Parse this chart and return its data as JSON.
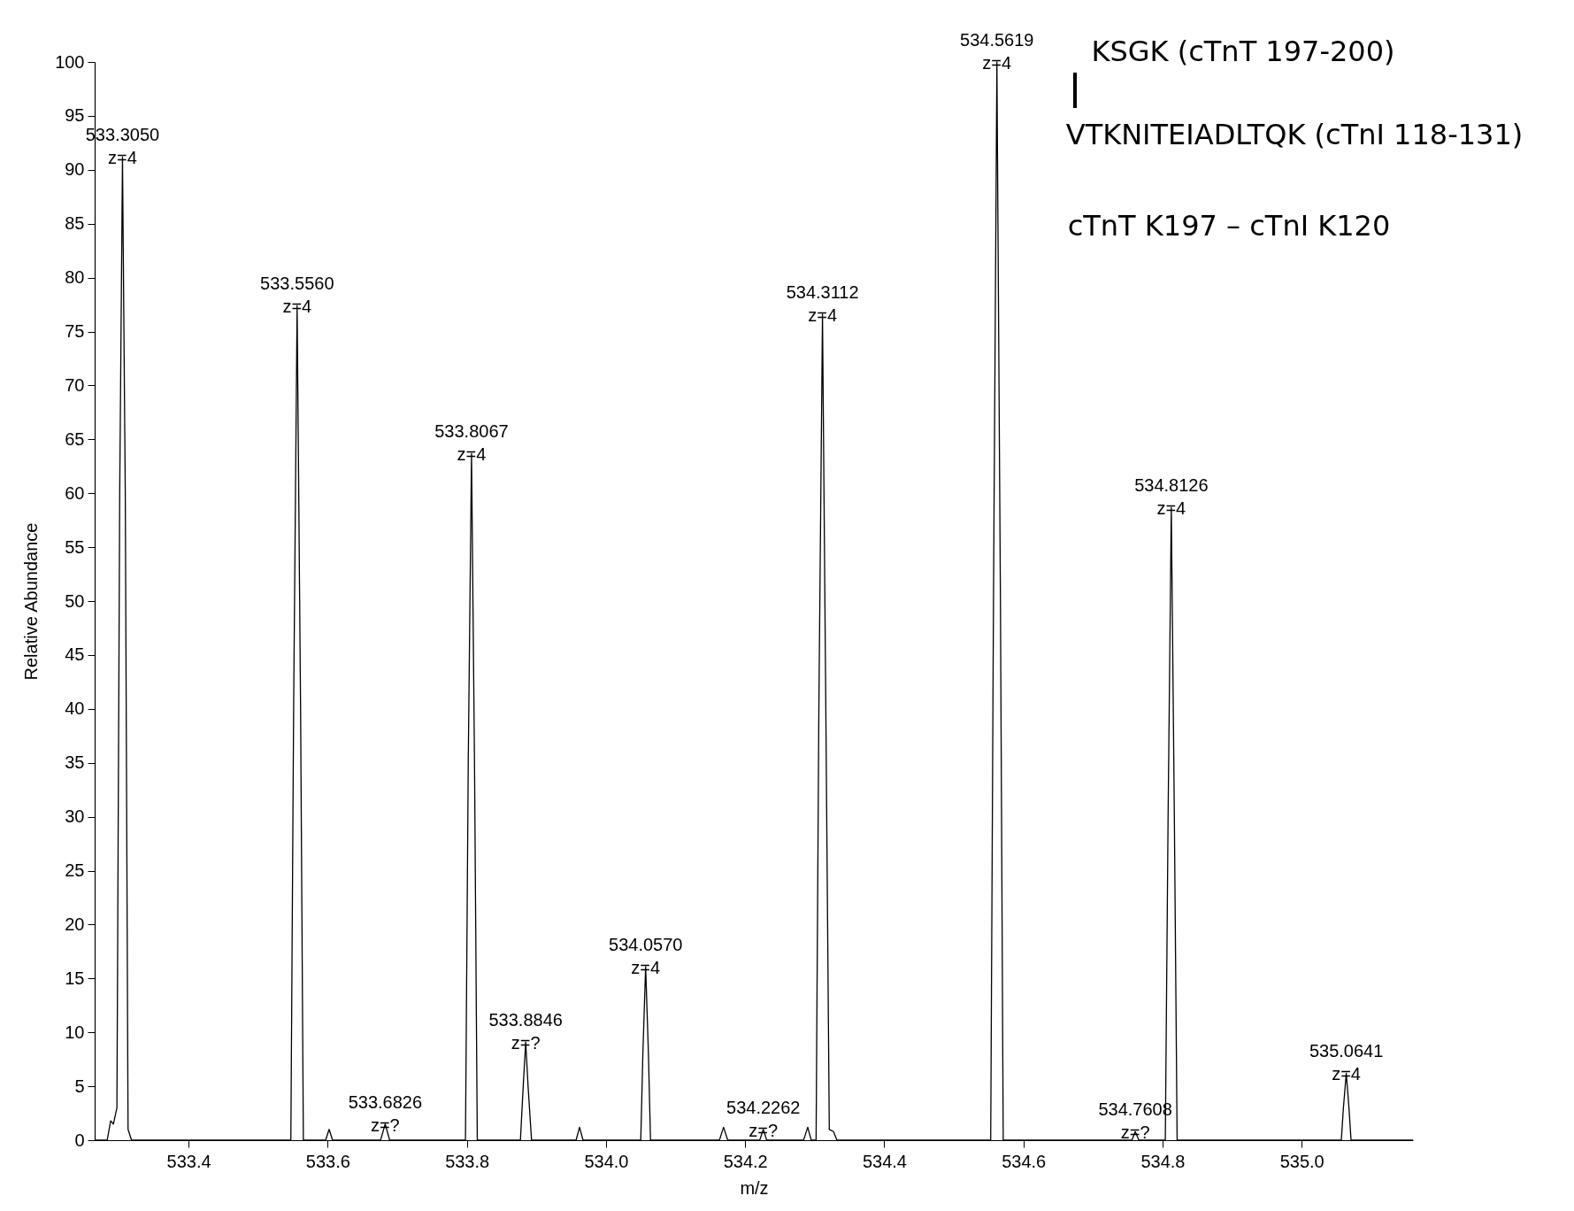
{
  "chart_data": {
    "type": "line",
    "xlabel": "m/z",
    "ylabel": "Relative Abundance",
    "xlim": [
      533.265,
      535.16
    ],
    "xticks": [
      533.4,
      533.6,
      533.8,
      {
        "value": 534,
        "label": "534.0"
      },
      534.2,
      534.4,
      534.6,
      534.8,
      {
        "value": 535,
        "label": "535.0"
      }
    ],
    "ylim": [
      0,
      100
    ],
    "yticks": [
      0,
      5,
      10,
      15,
      20,
      25,
      30,
      35,
      40,
      45,
      50,
      55,
      60,
      65,
      70,
      75,
      80,
      85,
      90,
      95,
      100
    ],
    "grid": false,
    "marker": "none",
    "line_style": "solid",
    "series": [
      {
        "color": "#000000",
        "x": [
          533.265,
          533.283,
          533.288,
          533.292,
          533.297,
          533.301,
          533.305,
          533.309,
          533.313,
          533.318,
          533.547,
          533.551,
          533.556,
          533.561,
          533.565,
          533.597,
          533.602,
          533.607,
          533.676,
          533.6826,
          533.689,
          533.798,
          533.802,
          533.8067,
          533.811,
          533.815,
          533.877,
          533.881,
          533.8846,
          533.888,
          533.893,
          533.957,
          533.962,
          533.967,
          534.05,
          534.053,
          534.057,
          534.061,
          534.064,
          534.163,
          534.169,
          534.175,
          534.221,
          534.2262,
          534.231,
          534.284,
          534.29,
          534.295,
          534.302,
          534.306,
          534.3112,
          534.316,
          534.321,
          534.327,
          534.332,
          534.553,
          534.557,
          534.5619,
          534.567,
          534.571,
          534.756,
          534.7608,
          534.766,
          534.804,
          534.808,
          534.8126,
          534.817,
          534.821,
          535.057,
          535.06,
          535.0641,
          535.068,
          535.071,
          535.16
        ],
        "values": [
          0,
          0,
          1.8,
          1.5,
          3,
          60,
          91.2,
          60,
          1,
          0,
          0,
          40,
          77.4,
          40,
          0,
          0,
          1,
          0,
          0,
          1.5,
          0,
          0,
          35,
          63.7,
          35,
          0,
          0,
          5,
          9.1,
          5,
          0,
          0,
          1.2,
          0,
          0,
          8,
          16.1,
          8,
          0,
          0,
          1.2,
          0,
          0,
          1,
          0,
          0,
          1.2,
          0,
          0,
          40,
          76.6,
          40,
          1,
          0.8,
          0,
          0,
          50,
          100,
          50,
          0,
          0,
          0.8,
          0,
          0,
          30,
          58.7,
          30,
          0,
          0,
          3,
          6.2,
          3,
          0,
          0
        ]
      }
    ],
    "annotations": [
      {
        "text": "533.3050\nz=4",
        "x": 533.305,
        "y": 91.2
      },
      {
        "text": "533.5560\nz=4",
        "x": 533.556,
        "y": 77.4
      },
      {
        "text": "533.6826\nz=?",
        "x": 533.6826,
        "y": 1.5
      },
      {
        "text": "533.8067\nz=4",
        "x": 533.8067,
        "y": 63.7
      },
      {
        "text": "533.8846\nz=?",
        "x": 533.8846,
        "y": 9.1
      },
      {
        "text": "534.0570\nz=4",
        "x": 534.057,
        "y": 16.1
      },
      {
        "text": "534.2262\nz=?",
        "x": 534.2262,
        "y": 1
      },
      {
        "text": "534.3112\nz=4",
        "x": 534.3112,
        "y": 76.6
      },
      {
        "text": "534.5619\nz=4",
        "x": 534.5619,
        "y": 100
      },
      {
        "text": "534.7608\nz=?",
        "x": 534.7608,
        "y": 0.8
      },
      {
        "text": "534.8126\nz=4",
        "x": 534.8126,
        "y": 58.7
      },
      {
        "text": "535.0641\nz=4",
        "x": 535.0641,
        "y": 6.2
      },
      "KSGK (cTnT 197-200)",
      "VTKNITEIADLTQK (cTnI 118-131)",
      "cTnT K197 – cTnI K120"
    ]
  }
}
